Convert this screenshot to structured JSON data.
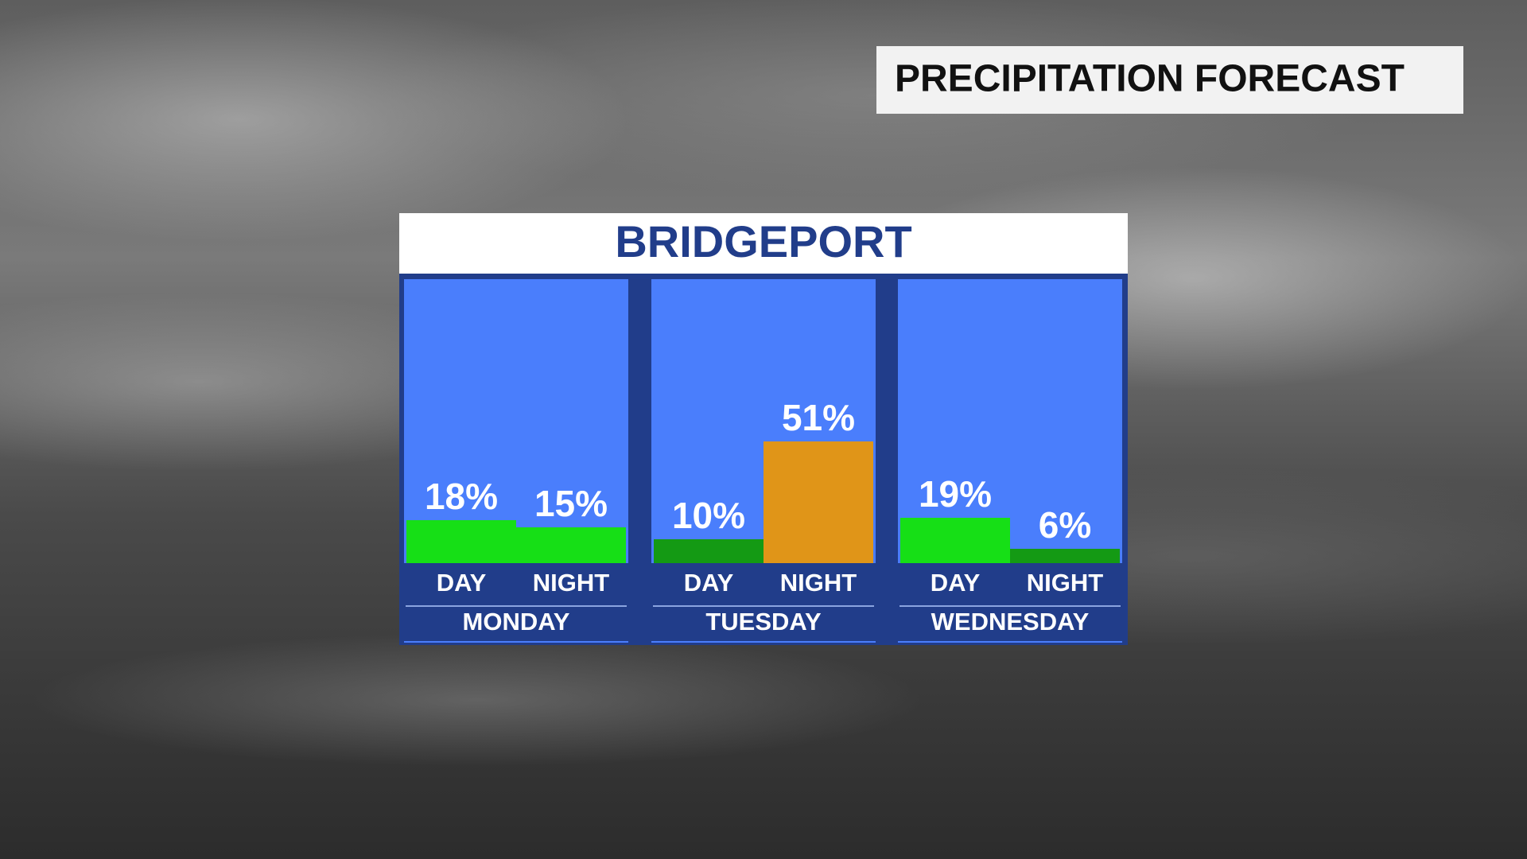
{
  "header": {
    "title": "PRECIPITATION FORECAST"
  },
  "chart_data": {
    "type": "bar",
    "title": "BRIDGEPORT",
    "categories": [
      "MONDAY",
      "TUESDAY",
      "WEDNESDAY"
    ],
    "ylim": [
      0,
      100
    ],
    "series": [
      {
        "name": "DAY",
        "values": [
          18,
          10,
          19
        ],
        "value_labels": [
          "18%",
          "10%",
          "19%"
        ],
        "colors": [
          "#16df16",
          "#149a14",
          "#16df16"
        ]
      },
      {
        "name": "NIGHT",
        "values": [
          15,
          51,
          6
        ],
        "value_labels": [
          "15%",
          "51%",
          "6%"
        ],
        "colors": [
          "#16df16",
          "#e09518",
          "#149a14"
        ]
      }
    ]
  }
}
